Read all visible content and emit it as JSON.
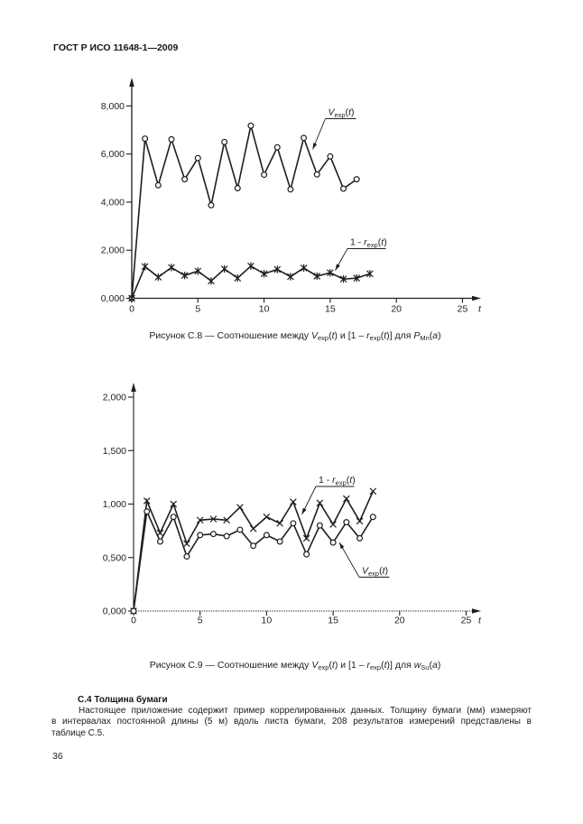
{
  "page": {
    "header": "ГОСТ Р ИСО 11648-1—2009",
    "page_number": "36"
  },
  "section": {
    "heading": "С.4 Толщина бумаги",
    "paragraph_lines": [
      "Настоящее приложение содержит пример коррелированных данных. Толщину бумаги (мм) измеряют",
      "в интервалах постоянной длины (5 м) вдоль листа бумаги, 208 результатов измерений представлены в",
      "таблице С.5."
    ],
    "paragraph": "Настоящее приложение содержит пример коррелированных данных. Толщину бумаги (мм) измеряют в интервалах постоянной длины (5 м) вдоль листа бумаги, 208 результатов измерений представлены в таблице С.5."
  },
  "chart_data": [
    {
      "id": "fig-c8",
      "type": "line",
      "title": "",
      "xlabel": "t",
      "ylabel": "",
      "xlim": [
        0,
        26.3
      ],
      "ylim": [
        0,
        9.15
      ],
      "x_ticks": [
        0,
        5,
        10,
        15,
        20,
        25
      ],
      "x_tick_labels": [
        "0",
        "5",
        "10",
        "15",
        "20",
        "25"
      ],
      "y_ticks": [
        0,
        2,
        4,
        6,
        8
      ],
      "y_tick_labels": [
        "0,000",
        "2,000",
        "4,000",
        "6,000",
        "8,000"
      ],
      "grid": false,
      "legend_position": "inline-annotations",
      "caption_parts": [
        {
          "t": "Рисунок С.8 — Соотношение между "
        },
        {
          "t": "V",
          "i": true
        },
        {
          "t": "exp",
          "sub": true
        },
        {
          "t": "("
        },
        {
          "t": "t",
          "i": true
        },
        {
          "t": ") и [1 – "
        },
        {
          "t": "r",
          "i": true
        },
        {
          "t": "exp",
          "sub": true
        },
        {
          "t": "("
        },
        {
          "t": "t",
          "i": true
        },
        {
          "t": ")] для "
        },
        {
          "t": "P",
          "i": true
        },
        {
          "t": "Mn",
          "sub": true
        },
        {
          "t": "("
        },
        {
          "t": "a",
          "i": true
        },
        {
          "t": ")"
        }
      ],
      "series": [
        {
          "name": "Vexp(t)",
          "marker": "circle",
          "label_parts": [
            {
              "t": "V",
              "i": true
            },
            {
              "t": "exp",
              "sub": true
            },
            {
              "t": "("
            },
            {
              "t": "t",
              "i": true
            },
            {
              "t": ")"
            }
          ],
          "x": [
            0,
            1,
            2,
            3,
            4,
            5,
            6,
            7,
            8,
            9,
            10,
            11,
            12,
            13,
            14,
            15,
            16,
            17
          ],
          "values": [
            0,
            6.64,
            4.7,
            6.61,
            4.95,
            5.83,
            3.87,
            6.5,
            4.58,
            7.18,
            5.14,
            6.28,
            4.53,
            6.67,
            5.15,
            5.9,
            4.56,
            4.95
          ]
        },
        {
          "name": "1 - rexp(t)",
          "marker": "star",
          "label_parts": [
            {
              "t": "1 - "
            },
            {
              "t": "r",
              "i": true
            },
            {
              "t": "exp",
              "sub": true
            },
            {
              "t": "("
            },
            {
              "t": "t",
              "i": true
            },
            {
              "t": ")"
            }
          ],
          "x": [
            0,
            1,
            2,
            3,
            4,
            5,
            6,
            7,
            8,
            9,
            10,
            11,
            12,
            13,
            14,
            15,
            16,
            17,
            18
          ],
          "values": [
            0,
            1.32,
            0.88,
            1.28,
            0.95,
            1.13,
            0.72,
            1.22,
            0.84,
            1.34,
            1.02,
            1.2,
            0.9,
            1.26,
            0.92,
            1.06,
            0.8,
            0.84,
            1.02
          ]
        }
      ]
    },
    {
      "id": "fig-c9",
      "type": "line",
      "title": "",
      "xlabel": "t",
      "ylabel": "",
      "xlim": [
        0,
        26.3
      ],
      "ylim": [
        0,
        2.13
      ],
      "x_ticks": [
        0,
        5,
        10,
        15,
        20,
        25
      ],
      "x_tick_labels": [
        "0",
        "5",
        "10",
        "15",
        "20",
        "25"
      ],
      "y_ticks": [
        0,
        0.5,
        1,
        1.5,
        2
      ],
      "y_tick_labels": [
        "0,000",
        "0,500",
        "1,000",
        "1,500",
        "2,000"
      ],
      "grid": false,
      "legend_position": "inline-annotations",
      "caption_parts": [
        {
          "t": "Рисунок С.9 — Соотношение между "
        },
        {
          "t": "V",
          "i": true
        },
        {
          "t": "exp",
          "sub": true
        },
        {
          "t": "("
        },
        {
          "t": "t",
          "i": true
        },
        {
          "t": ") и [1 – "
        },
        {
          "t": "r",
          "i": true
        },
        {
          "t": "exp",
          "sub": true
        },
        {
          "t": "("
        },
        {
          "t": "t",
          "i": true
        },
        {
          "t": ")] для "
        },
        {
          "t": "w",
          "i": true
        },
        {
          "t": "Su",
          "sub": true
        },
        {
          "t": "("
        },
        {
          "t": "a",
          "i": true
        },
        {
          "t": ")"
        }
      ],
      "series": [
        {
          "name": "1 - rexp(t)",
          "marker": "x",
          "label_parts": [
            {
              "t": "1 - "
            },
            {
              "t": "r",
              "i": true
            },
            {
              "t": "exp",
              "sub": true
            },
            {
              "t": "("
            },
            {
              "t": "t",
              "i": true
            },
            {
              "t": ")"
            }
          ],
          "x": [
            0,
            1,
            2,
            3,
            4,
            5,
            6,
            7,
            8,
            9,
            10,
            11,
            12,
            13,
            14,
            15,
            16,
            17,
            18
          ],
          "values": [
            0,
            1.03,
            0.73,
            1.0,
            0.63,
            0.85,
            0.86,
            0.85,
            0.97,
            0.77,
            0.88,
            0.82,
            1.02,
            0.68,
            1.01,
            0.81,
            1.05,
            0.84,
            1.12
          ]
        },
        {
          "name": "Vexp(t)",
          "marker": "circle",
          "label_parts": [
            {
              "t": "V",
              "i": true
            },
            {
              "t": "exp",
              "sub": true
            },
            {
              "t": "("
            },
            {
              "t": "t",
              "i": true
            },
            {
              "t": ")"
            }
          ],
          "x": [
            0,
            1,
            2,
            3,
            4,
            5,
            6,
            7,
            8,
            9,
            10,
            11,
            12,
            13,
            14,
            15,
            16,
            17,
            18
          ],
          "values": [
            0,
            0.93,
            0.65,
            0.88,
            0.51,
            0.71,
            0.72,
            0.7,
            0.76,
            0.61,
            0.71,
            0.65,
            0.82,
            0.53,
            0.8,
            0.64,
            0.83,
            0.68,
            0.88
          ]
        }
      ]
    }
  ]
}
